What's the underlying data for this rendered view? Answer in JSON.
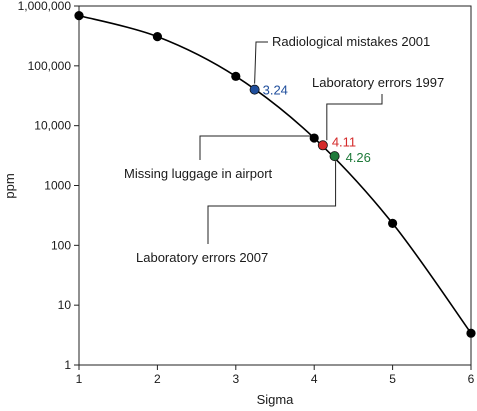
{
  "chart_data": {
    "type": "line",
    "title": "",
    "xlabel": "Sigma",
    "ylabel": "ppm",
    "xlim": [
      1,
      6
    ],
    "ylim": [
      1,
      1000000
    ],
    "yscale": "log",
    "grid": false,
    "x_ticks": [
      1,
      2,
      3,
      4,
      5,
      6
    ],
    "x_tick_labels": [
      "1",
      "2",
      "3",
      "4",
      "5",
      "6"
    ],
    "y_ticks": [
      1,
      10,
      100,
      1000,
      10000,
      100000,
      1000000
    ],
    "y_tick_labels": [
      "1",
      "10",
      "100",
      "1000",
      "10,000",
      "100,000",
      "1,000,000"
    ],
    "series": [
      {
        "color": "#000000",
        "x": [
          1,
          2,
          3,
          4,
          5,
          6
        ],
        "y": [
          690000,
          308000,
          66800,
          6210,
          233,
          3.4
        ]
      }
    ],
    "highlighted_points": [
      {
        "x": 3.24,
        "y": 40000,
        "label": "3.24",
        "color": "#1f4e9c"
      },
      {
        "x": 4.11,
        "y": 4700,
        "label": "4.11",
        "color": "#d42a2a"
      },
      {
        "x": 4.26,
        "y": 3100,
        "label": "4.26",
        "color": "#1f7a3a"
      }
    ],
    "annotations": [
      {
        "text": "Radiological mistakes 2001",
        "target": "3.24"
      },
      {
        "text": "Laboratory errors 1997",
        "target": "4.11"
      },
      {
        "text": "Missing luggage in airport",
        "target": "4.11"
      },
      {
        "text": "Laboratory errors 2007",
        "target": "4.26"
      }
    ]
  }
}
